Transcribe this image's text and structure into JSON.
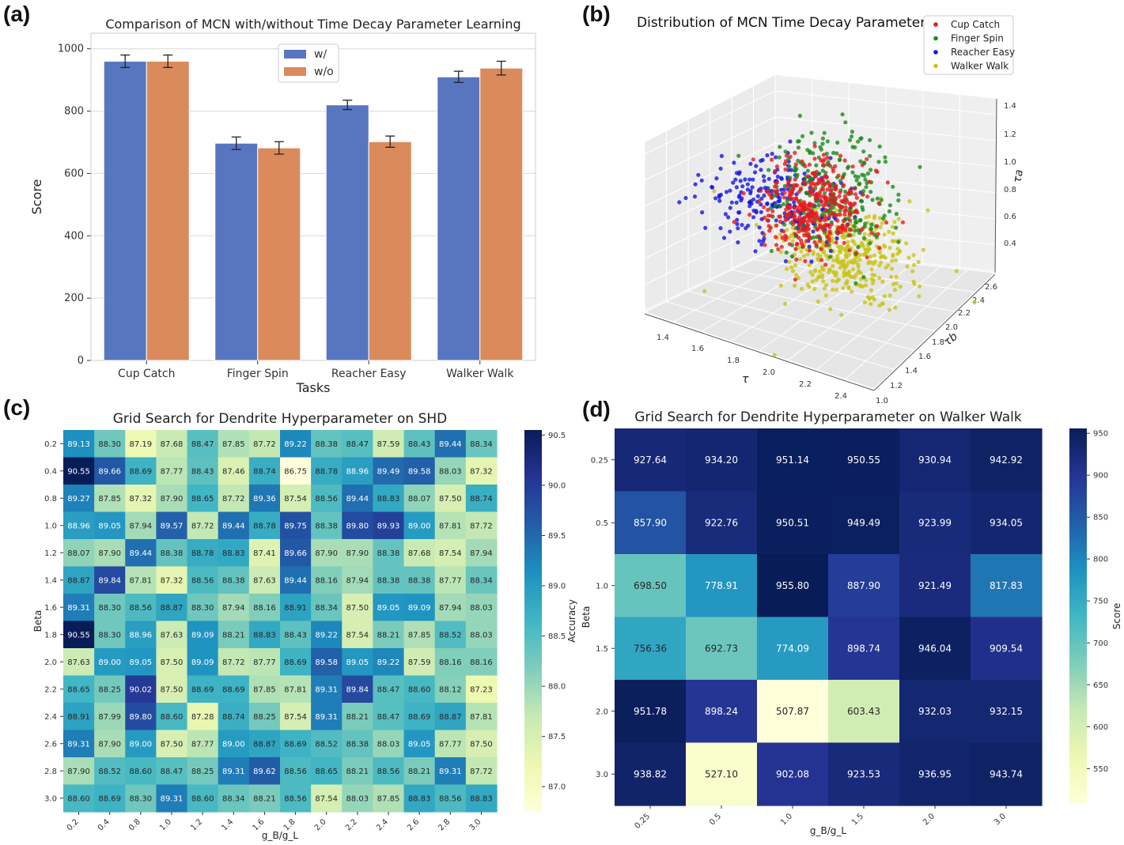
{
  "panel_labels": [
    "(a)",
    "(b)",
    "(c)",
    "(d)"
  ],
  "chart_data": [
    {
      "id": "a",
      "type": "bar",
      "title": "Comparison of MCN with/without Time Decay Parameter Learning",
      "xlabel": "Tasks",
      "ylabel": "Score",
      "categories": [
        "Cup Catch",
        "Finger Spin",
        "Reacher Easy",
        "Walker Walk"
      ],
      "ylim": [
        0,
        1050
      ],
      "yticks": [
        0,
        200,
        400,
        600,
        800,
        1000
      ],
      "grid": true,
      "legend": "top-center",
      "series": [
        {
          "name": "w/",
          "color": "#5875c0",
          "values": [
            960,
            697,
            820,
            910
          ],
          "errors": [
            20,
            20,
            15,
            18
          ]
        },
        {
          "name": "w/o",
          "color": "#db8a5c",
          "values": [
            960,
            682,
            702,
            938
          ],
          "errors": [
            20,
            20,
            18,
            22
          ]
        }
      ]
    },
    {
      "id": "b",
      "type": "scatter",
      "title": "Distribution of MCN Time Decay Parameter",
      "xlabel": "τ",
      "ylabel": "τb",
      "zlabel": "τa",
      "xticks": [
        "1.4",
        "1.6",
        "1.8",
        "2.0",
        "2.2",
        "2.4"
      ],
      "yticks": [
        "1.0",
        "1.2",
        "1.4",
        "1.6",
        "1.8",
        "2.0",
        "2.2",
        "2.4",
        "2.6"
      ],
      "zticks": [
        "0.4",
        "0.6",
        "0.8",
        "1.0",
        "1.2",
        "1.4"
      ],
      "legend": "top-right",
      "series": [
        {
          "name": "Cup Catch",
          "color": "#e8191c",
          "center": [
            1.85,
            1.9,
            0.85
          ],
          "spread": [
            0.1,
            0.2,
            0.12
          ]
        },
        {
          "name": "Finger Spin",
          "color": "#1a8a1a",
          "center": [
            1.9,
            1.95,
            0.95
          ],
          "spread": [
            0.12,
            0.22,
            0.15
          ]
        },
        {
          "name": "Reacher Easy",
          "color": "#1515e0",
          "center": [
            1.7,
            1.8,
            0.85
          ],
          "spread": [
            0.15,
            0.2,
            0.08
          ]
        },
        {
          "name": "Walker Walk",
          "color": "#c9c416",
          "center": [
            2.05,
            1.75,
            0.7
          ],
          "spread": [
            0.15,
            0.22,
            0.1
          ]
        }
      ]
    },
    {
      "id": "c",
      "type": "heatmap",
      "title": "Grid Search for Dendrite Hyperparameter on SHD",
      "xlabel": "g_B/g_L",
      "ylabel": "Beta",
      "colorbar_label": "Accuracy",
      "x": [
        "0.2",
        "0.4",
        "0.8",
        "1.0",
        "1.2",
        "1.4",
        "1.6",
        "1.8",
        "2.0",
        "2.2",
        "2.4",
        "2.6",
        "2.8",
        "3.0"
      ],
      "y": [
        "0.2",
        "0.4",
        "0.8",
        "1.0",
        "1.2",
        "1.4",
        "1.6",
        "1.8",
        "2.0",
        "2.2",
        "2.4",
        "2.6",
        "2.8",
        "3.0"
      ],
      "vmin": 86.75,
      "vmax": 90.55,
      "colorbar_ticks": [
        "87.0",
        "87.5",
        "88.0",
        "88.5",
        "89.0",
        "89.5",
        "90.0",
        "90.5"
      ],
      "values": [
        [
          "89.13",
          "88.30",
          "87.19",
          "87.68",
          "88.47",
          "87.85",
          "87.72",
          "89.22",
          "88.38",
          "88.47",
          "87.59",
          "88.43",
          "89.44",
          "88.34"
        ],
        [
          "90.55",
          "89.66",
          "88.69",
          "87.77",
          "88.43",
          "87.46",
          "88.74",
          "86.75",
          "88.78",
          "88.96",
          "89.49",
          "89.58",
          "88.03",
          "87.32"
        ],
        [
          "89.27",
          "87.85",
          "87.32",
          "87.90",
          "88.65",
          "87.72",
          "89.36",
          "87.54",
          "88.56",
          "89.44",
          "88.83",
          "88.07",
          "87.50",
          "88.74"
        ],
        [
          "88.96",
          "89.05",
          "87.94",
          "89.57",
          "87.72",
          "89.44",
          "88.78",
          "89.75",
          "88.38",
          "89.80",
          "89.93",
          "89.00",
          "87.81",
          "87.72"
        ],
        [
          "88.07",
          "87.90",
          "89.44",
          "88.38",
          "88.78",
          "88.83",
          "87.41",
          "89.66",
          "87.90",
          "87.90",
          "88.38",
          "87.68",
          "87.54",
          "87.94"
        ],
        [
          "88.87",
          "89.84",
          "87.81",
          "87.32",
          "88.56",
          "88.38",
          "87.63",
          "89.44",
          "88.16",
          "87.94",
          "88.38",
          "88.38",
          "87.77",
          "88.34"
        ],
        [
          "89.31",
          "88.30",
          "88.56",
          "88.87",
          "88.30",
          "87.94",
          "88.16",
          "88.91",
          "88.34",
          "87.50",
          "89.05",
          "89.09",
          "87.94",
          "88.03"
        ],
        [
          "90.55",
          "88.30",
          "88.96",
          "87.63",
          "89.09",
          "88.21",
          "88.83",
          "88.43",
          "89.22",
          "87.54",
          "88.21",
          "87.85",
          "88.52",
          "88.03"
        ],
        [
          "87.63",
          "89.00",
          "89.05",
          "87.50",
          "89.09",
          "87.72",
          "87.77",
          "88.69",
          "89.58",
          "89.05",
          "89.22",
          "87.59",
          "88.16",
          "88.16"
        ],
        [
          "88.65",
          "88.25",
          "90.02",
          "87.50",
          "88.69",
          "88.69",
          "87.85",
          "87.81",
          "89.31",
          "89.84",
          "88.47",
          "88.60",
          "88.12",
          "87.23"
        ],
        [
          "88.91",
          "87.99",
          "89.80",
          "88.60",
          "87.28",
          "88.74",
          "88.25",
          "87.54",
          "89.31",
          "88.21",
          "88.47",
          "88.69",
          "88.87",
          "87.81"
        ],
        [
          "89.31",
          "87.90",
          "89.00",
          "87.50",
          "87.77",
          "89.00",
          "88.87",
          "88.69",
          "88.52",
          "88.38",
          "88.03",
          "89.05",
          "87.77",
          "87.50"
        ],
        [
          "87.90",
          "88.52",
          "88.60",
          "88.47",
          "88.25",
          "89.31",
          "89.62",
          "88.56",
          "88.65",
          "88.21",
          "88.56",
          "88.21",
          "89.31",
          "87.72"
        ],
        [
          "88.60",
          "88.69",
          "88.30",
          "89.31",
          "88.60",
          "88.34",
          "88.21",
          "88.56",
          "87.54",
          "88.03",
          "87.85",
          "88.83",
          "88.56",
          "88.83"
        ]
      ]
    },
    {
      "id": "d",
      "type": "heatmap",
      "title": "Grid Search for Dendrite Hyperparameter on Walker Walk",
      "xlabel": "g_B/g_L",
      "ylabel": "Beta",
      "colorbar_label": "Score",
      "x": [
        "0.25",
        "0.5",
        "1.0",
        "1.5",
        "2.0",
        "3.0"
      ],
      "y": [
        "0.25",
        "0.5",
        "1.0",
        "1.5",
        "2.0",
        "3.0"
      ],
      "vmin": 507.87,
      "vmax": 955.8,
      "colorbar_ticks": [
        "550",
        "600",
        "650",
        "700",
        "750",
        "800",
        "850",
        "900",
        "950"
      ],
      "values": [
        [
          "927.64",
          "934.20",
          "951.14",
          "950.55",
          "930.94",
          "942.92"
        ],
        [
          "857.90",
          "922.76",
          "950.51",
          "949.49",
          "923.99",
          "934.05"
        ],
        [
          "698.50",
          "778.91",
          "955.80",
          "887.90",
          "921.49",
          "817.83"
        ],
        [
          "756.36",
          "692.73",
          "774.09",
          "898.74",
          "946.04",
          "909.54"
        ],
        [
          "951.78",
          "898.24",
          "507.87",
          "603.43",
          "932.03",
          "932.15"
        ],
        [
          "938.82",
          "527.10",
          "902.08",
          "923.53",
          "936.95",
          "943.74"
        ]
      ]
    }
  ]
}
